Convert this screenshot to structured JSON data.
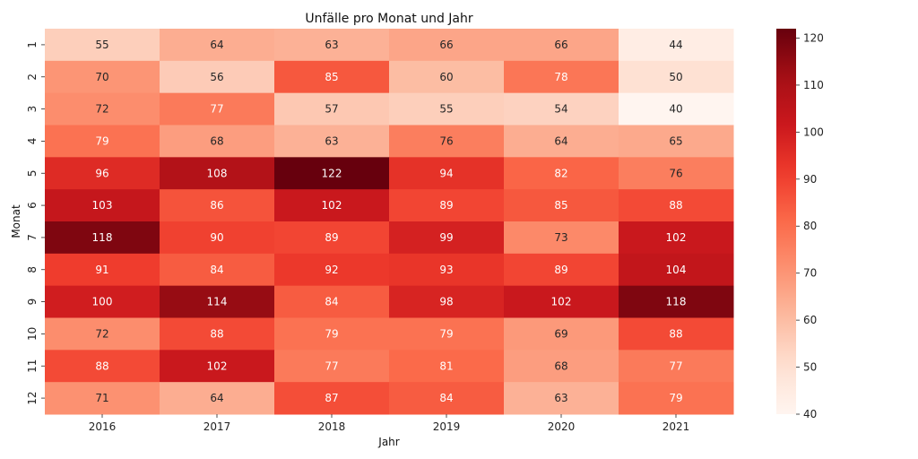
{
  "chart_data": {
    "type": "heatmap",
    "title": "Unfälle pro Monat und Jahr",
    "xlabel": "Jahr",
    "ylabel": "Monat",
    "x": [
      "2016",
      "2017",
      "2018",
      "2019",
      "2020",
      "2021"
    ],
    "y": [
      "1",
      "2",
      "3",
      "4",
      "5",
      "6",
      "7",
      "8",
      "9",
      "10",
      "11",
      "12"
    ],
    "values": [
      [
        55,
        64,
        63,
        66,
        66,
        44
      ],
      [
        70,
        56,
        85,
        60,
        78,
        50
      ],
      [
        72,
        77,
        57,
        55,
        54,
        40
      ],
      [
        79,
        68,
        63,
        76,
        64,
        65
      ],
      [
        96,
        108,
        122,
        94,
        82,
        76
      ],
      [
        103,
        86,
        102,
        89,
        85,
        88
      ],
      [
        118,
        90,
        89,
        99,
        73,
        102
      ],
      [
        91,
        84,
        92,
        93,
        89,
        104
      ],
      [
        100,
        114,
        84,
        98,
        102,
        118
      ],
      [
        72,
        88,
        79,
        79,
        69,
        88
      ],
      [
        88,
        102,
        77,
        81,
        68,
        77
      ],
      [
        71,
        64,
        87,
        84,
        63,
        79
      ]
    ],
    "colorbar": {
      "min": 40,
      "max": 122,
      "ticks": [
        "40",
        "50",
        "60",
        "70",
        "80",
        "90",
        "100",
        "110",
        "120"
      ],
      "colormap": "Reds"
    }
  }
}
